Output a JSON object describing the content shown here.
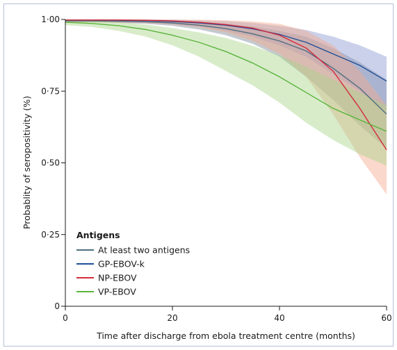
{
  "chart_data": {
    "type": "line",
    "title": "",
    "xlabel": "Time after discharge from ebola treatment centre (months)",
    "ylabel": "Probablity of seropositivity (%)",
    "xlim": [
      0,
      60
    ],
    "ylim": [
      0,
      1
    ],
    "x_ticks": [
      0,
      20,
      40,
      60
    ],
    "x_tick_labels": [
      "0",
      "20",
      "40",
      "60"
    ],
    "y_ticks": [
      0,
      0.25,
      0.5,
      0.75,
      1.0
    ],
    "y_tick_labels": [
      "0",
      "0·25",
      "0·50",
      "0·75",
      "1·00"
    ],
    "grid": false,
    "legend": {
      "title": "Antigens",
      "placement": "bottom-left"
    },
    "x": [
      0,
      5,
      10,
      15,
      20,
      25,
      30,
      35,
      40,
      45,
      50,
      55,
      60
    ],
    "series": [
      {
        "name": "At least two antigens",
        "color": "#4e6e7e",
        "band_color": "#7a8a96",
        "values": [
          0.995,
          0.995,
          0.994,
          0.992,
          0.988,
          0.98,
          0.968,
          0.95,
          0.925,
          0.89,
          0.83,
          0.76,
          0.67
        ],
        "lower": [
          0.99,
          0.99,
          0.988,
          0.985,
          0.978,
          0.965,
          0.945,
          0.915,
          0.87,
          0.8,
          0.72,
          0.63,
          0.55
        ],
        "upper": [
          1.0,
          1.0,
          1.0,
          0.999,
          0.996,
          0.992,
          0.985,
          0.975,
          0.96,
          0.94,
          0.9,
          0.85,
          0.79
        ]
      },
      {
        "name": "GP-EBOV-k",
        "color": "#1f4e96",
        "band_color": "#8c98d0",
        "values": [
          0.998,
          0.998,
          0.997,
          0.996,
          0.993,
          0.988,
          0.98,
          0.967,
          0.948,
          0.92,
          0.88,
          0.84,
          0.785
        ],
        "lower": [
          0.992,
          0.992,
          0.99,
          0.988,
          0.983,
          0.975,
          0.96,
          0.94,
          0.91,
          0.87,
          0.81,
          0.75,
          0.68
        ],
        "upper": [
          1.0,
          1.0,
          1.0,
          1.0,
          0.999,
          0.997,
          0.994,
          0.988,
          0.978,
          0.963,
          0.94,
          0.91,
          0.87
        ]
      },
      {
        "name": "NP-EBOV",
        "color": "#d42a3c",
        "band_color": "#f5a88c",
        "values": [
          0.998,
          0.998,
          0.998,
          0.997,
          0.995,
          0.99,
          0.982,
          0.97,
          0.945,
          0.9,
          0.82,
          0.69,
          0.545
        ],
        "lower": [
          0.99,
          0.99,
          0.989,
          0.987,
          0.982,
          0.972,
          0.955,
          0.925,
          0.88,
          0.8,
          0.67,
          0.52,
          0.39
        ],
        "upper": [
          1.0,
          1.0,
          1.0,
          1.0,
          1.0,
          0.999,
          0.997,
          0.993,
          0.985,
          0.96,
          0.91,
          0.82,
          0.7
        ]
      },
      {
        "name": "VP-EBOV",
        "color": "#5ab43c",
        "band_color": "#a8d48a",
        "values": [
          0.99,
          0.986,
          0.978,
          0.965,
          0.945,
          0.92,
          0.888,
          0.848,
          0.8,
          0.745,
          0.69,
          0.65,
          0.61
        ],
        "lower": [
          0.98,
          0.974,
          0.96,
          0.94,
          0.91,
          0.87,
          0.82,
          0.77,
          0.71,
          0.64,
          0.58,
          0.53,
          0.49
        ],
        "upper": [
          0.998,
          0.995,
          0.99,
          0.982,
          0.97,
          0.955,
          0.935,
          0.908,
          0.875,
          0.835,
          0.79,
          0.745,
          0.7
        ]
      }
    ]
  }
}
